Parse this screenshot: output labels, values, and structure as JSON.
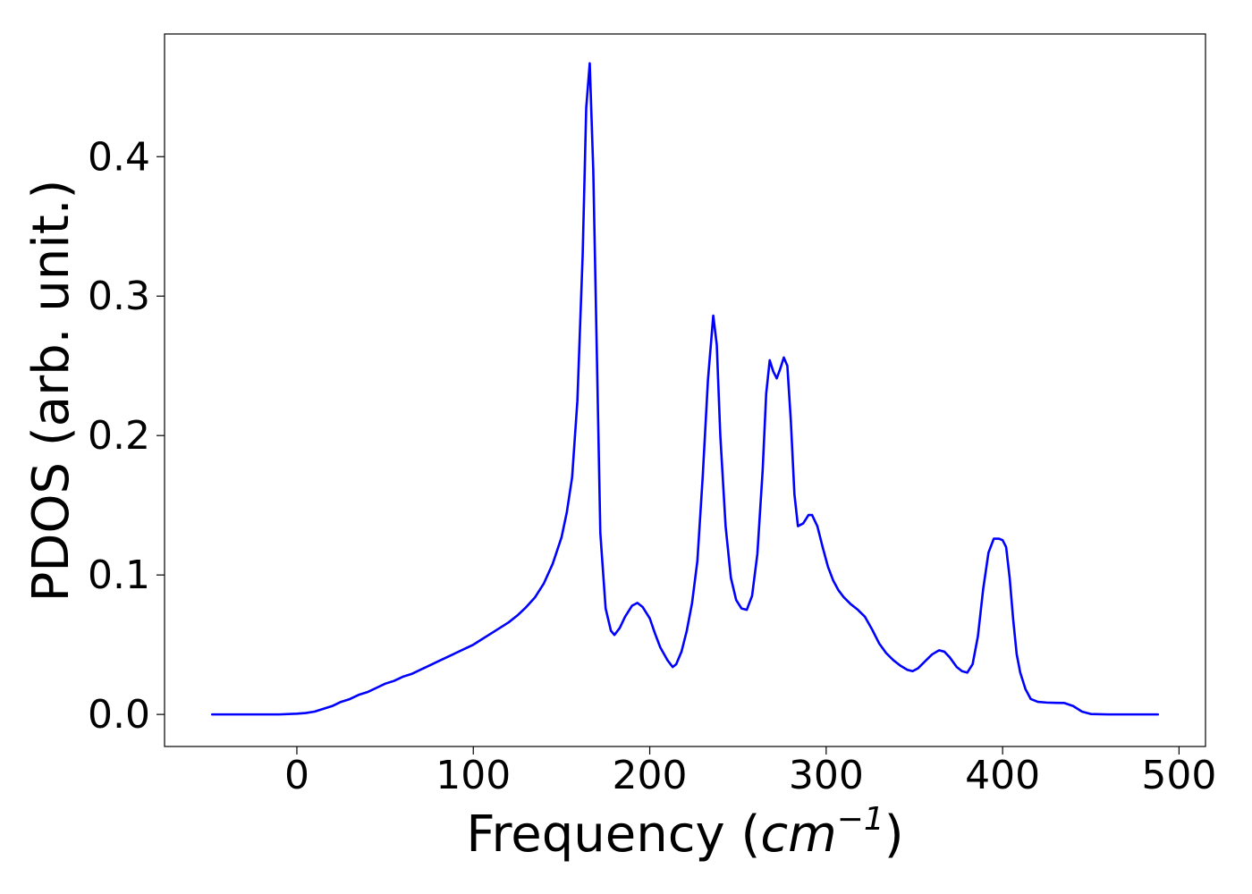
{
  "chart_data": {
    "type": "line",
    "title": "",
    "xlabel": "Frequency (cm−1)",
    "xlabel_parts": {
      "prefix": "Frequency (",
      "unit": "cm",
      "exponent": "−1",
      "suffix": ")"
    },
    "ylabel": "PDOS (arb. unit.)",
    "xlim": [
      -75,
      515
    ],
    "ylim": [
      -0.023,
      0.488
    ],
    "xticks": [
      0,
      100,
      200,
      300,
      400,
      500
    ],
    "xtick_labels": [
      "0",
      "100",
      "200",
      "300",
      "400",
      "500"
    ],
    "yticks": [
      0.0,
      0.1,
      0.2,
      0.3,
      0.4
    ],
    "ytick_labels": [
      "0.0",
      "0.1",
      "0.2",
      "0.3",
      "0.4"
    ],
    "grid": false,
    "legend": "none",
    "color": "#0000ff",
    "series": [
      {
        "x": [
          -48,
          -30,
          -10,
          0,
          5,
          10,
          15,
          20,
          25,
          30,
          35,
          40,
          45,
          50,
          55,
          60,
          65,
          70,
          75,
          80,
          85,
          90,
          95,
          100,
          105,
          110,
          115,
          120,
          125,
          130,
          135,
          140,
          145,
          150,
          153,
          156,
          159,
          162,
          164,
          166,
          168,
          170,
          172,
          175,
          178,
          180,
          183,
          186,
          190,
          193,
          196,
          200,
          203,
          206,
          210,
          213,
          215,
          218,
          221,
          224,
          227,
          230,
          233,
          236,
          238,
          240,
          243,
          246,
          249,
          252,
          255,
          258,
          261,
          264,
          266,
          268,
          270,
          272,
          274,
          276,
          278,
          280,
          282,
          284,
          287,
          290,
          292,
          295,
          298,
          301,
          304,
          307,
          310,
          314,
          318,
          322,
          326,
          330,
          334,
          338,
          342,
          346,
          349,
          352,
          356,
          360,
          364,
          367,
          370,
          374,
          377,
          380,
          383,
          386,
          389,
          392,
          395,
          398,
          400,
          402,
          404,
          406,
          408,
          410,
          413,
          416,
          420,
          425,
          430,
          435,
          440,
          445,
          450,
          460,
          470,
          488
        ],
        "y": [
          0.0,
          0.0,
          0.0,
          0.0005,
          0.001,
          0.002,
          0.004,
          0.006,
          0.009,
          0.011,
          0.014,
          0.016,
          0.019,
          0.022,
          0.024,
          0.027,
          0.029,
          0.032,
          0.035,
          0.038,
          0.041,
          0.044,
          0.047,
          0.05,
          0.054,
          0.058,
          0.062,
          0.066,
          0.071,
          0.077,
          0.084,
          0.094,
          0.108,
          0.127,
          0.145,
          0.17,
          0.225,
          0.33,
          0.435,
          0.467,
          0.39,
          0.26,
          0.13,
          0.076,
          0.06,
          0.057,
          0.062,
          0.07,
          0.078,
          0.08,
          0.077,
          0.069,
          0.058,
          0.048,
          0.039,
          0.034,
          0.036,
          0.045,
          0.06,
          0.08,
          0.11,
          0.17,
          0.24,
          0.286,
          0.265,
          0.2,
          0.135,
          0.098,
          0.082,
          0.076,
          0.075,
          0.085,
          0.115,
          0.175,
          0.23,
          0.254,
          0.246,
          0.241,
          0.248,
          0.256,
          0.25,
          0.21,
          0.158,
          0.135,
          0.137,
          0.143,
          0.143,
          0.135,
          0.12,
          0.106,
          0.096,
          0.089,
          0.084,
          0.079,
          0.075,
          0.07,
          0.061,
          0.051,
          0.044,
          0.039,
          0.035,
          0.032,
          0.031,
          0.033,
          0.038,
          0.043,
          0.046,
          0.045,
          0.041,
          0.034,
          0.031,
          0.03,
          0.036,
          0.056,
          0.09,
          0.116,
          0.126,
          0.126,
          0.125,
          0.12,
          0.098,
          0.068,
          0.043,
          0.03,
          0.018,
          0.011,
          0.009,
          0.0085,
          0.0083,
          0.0082,
          0.006,
          0.002,
          0.0003,
          0.0,
          0.0,
          0.0
        ]
      }
    ]
  }
}
